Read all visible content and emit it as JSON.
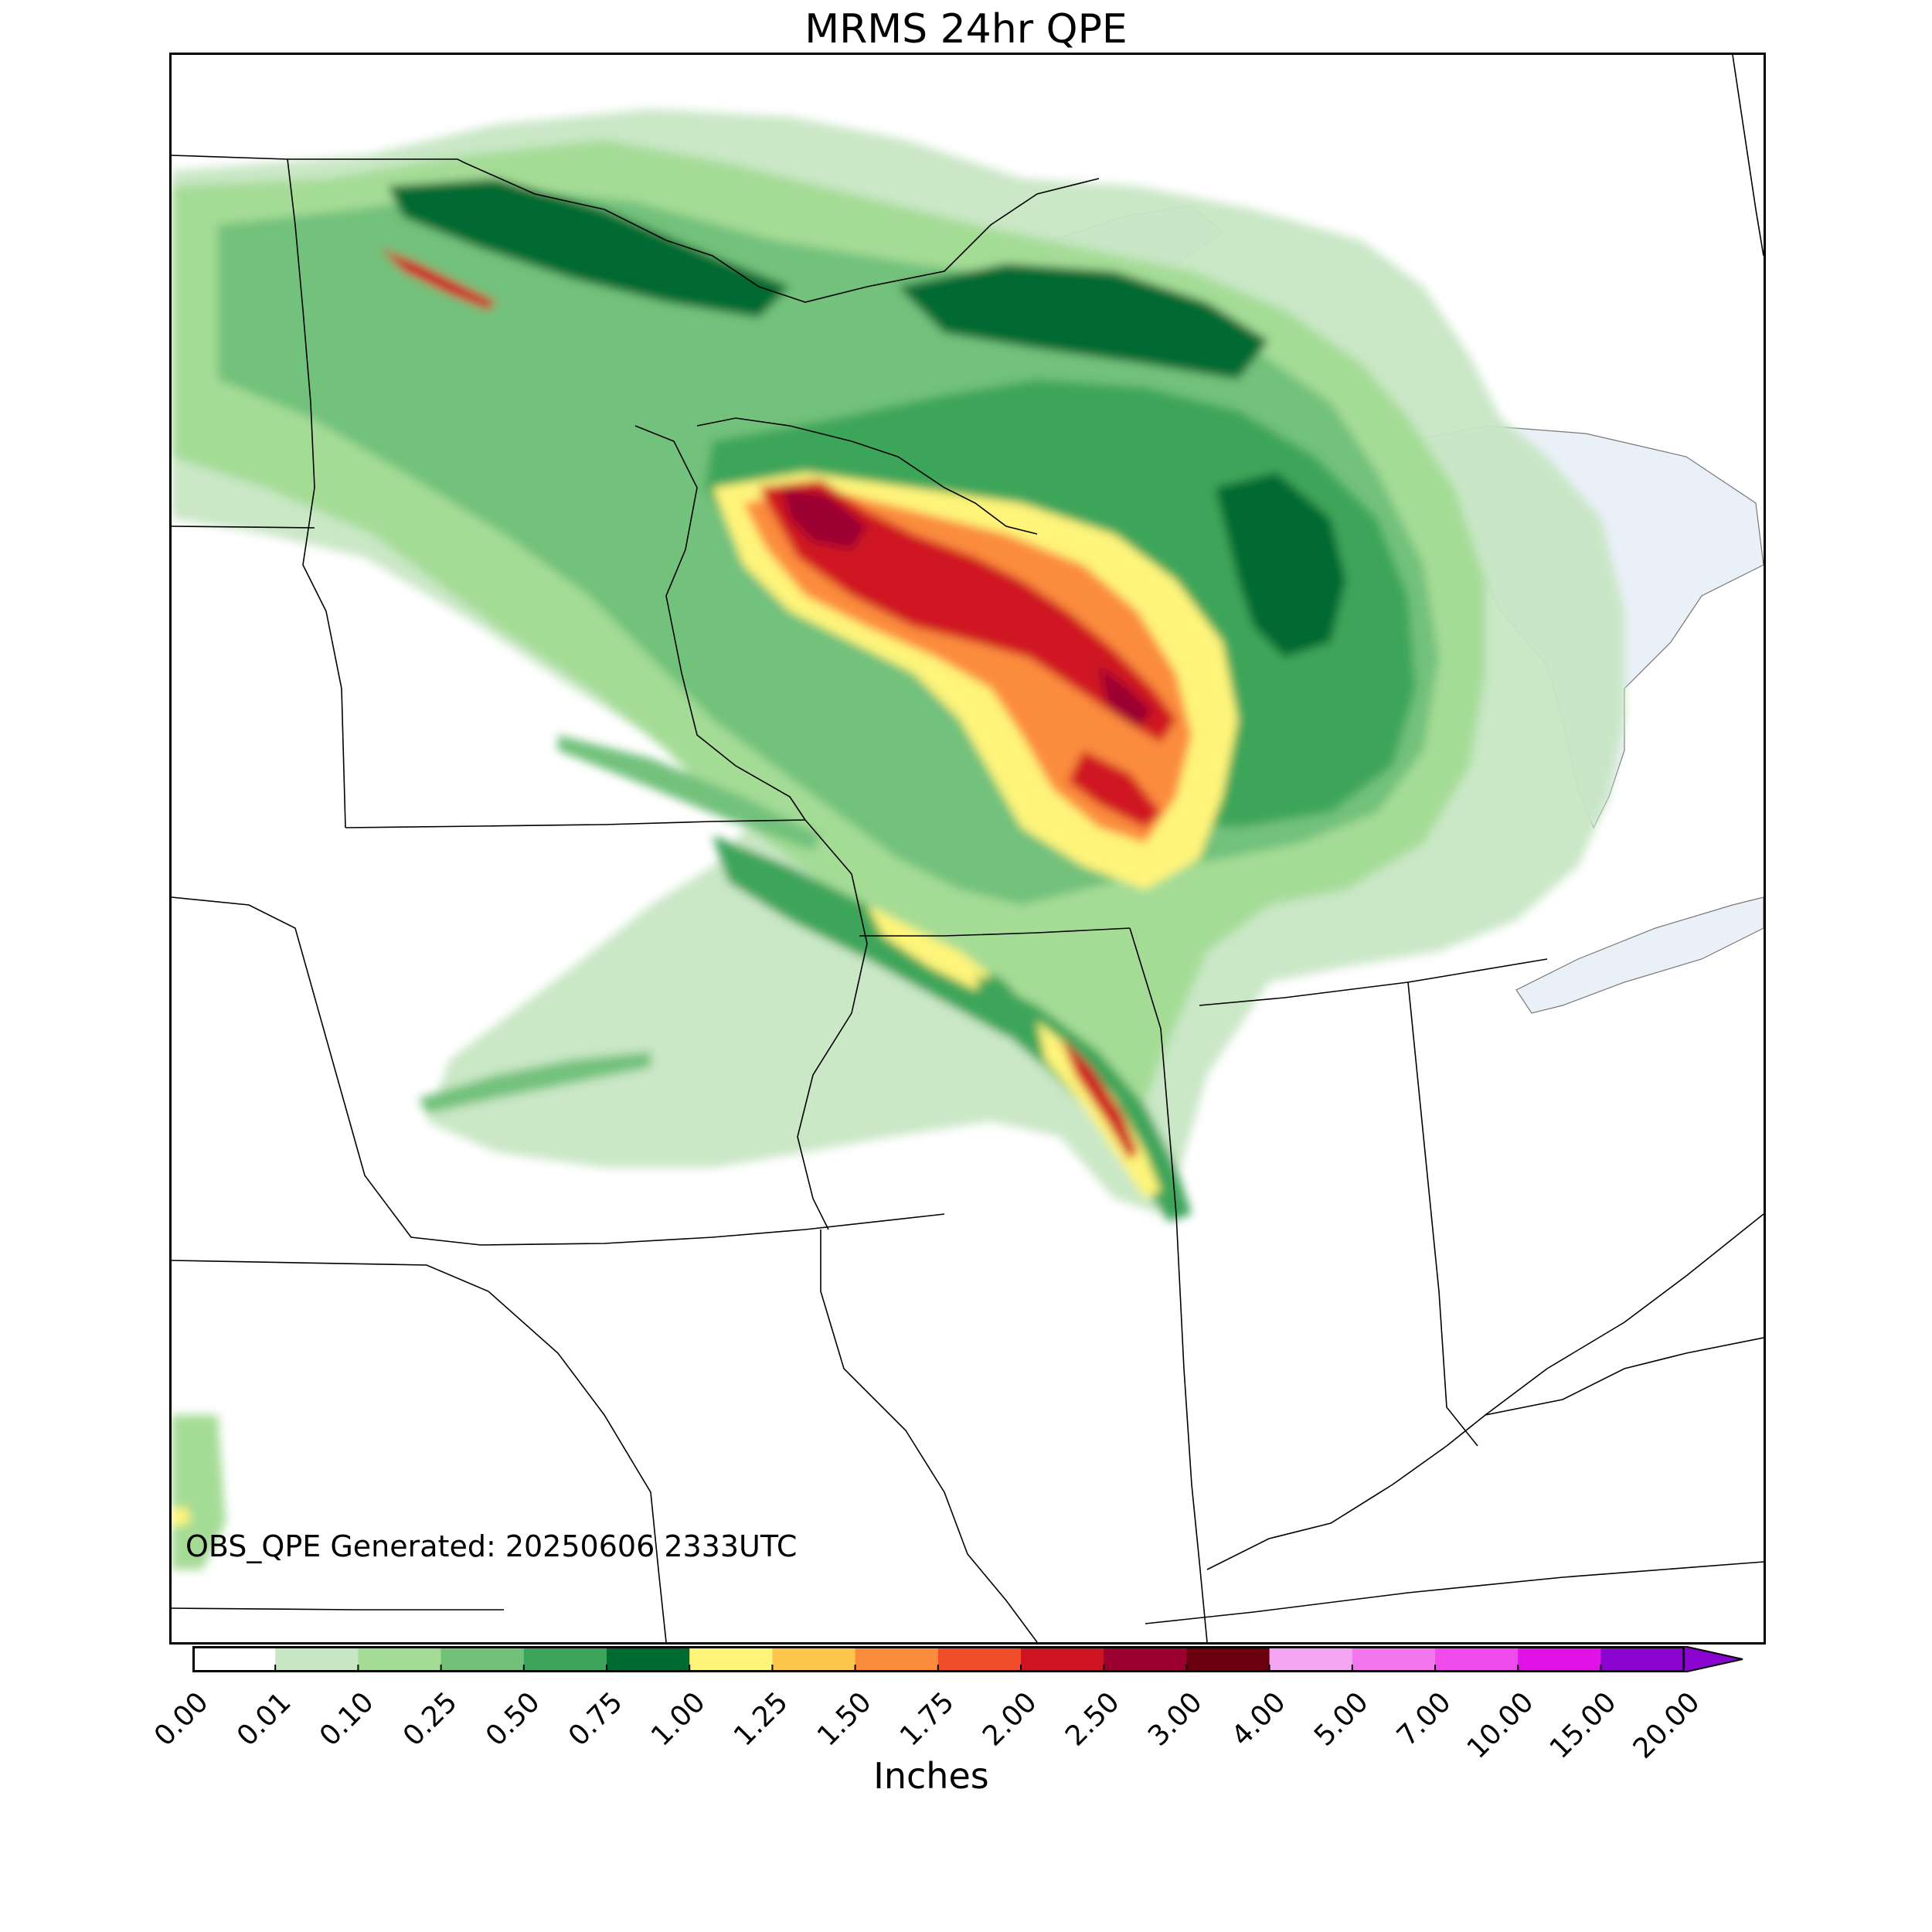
{
  "title": "MRMS 24hr QPE",
  "generated_label": "OBS_QPE Generated: 20250606 2333UTC",
  "colorbar": {
    "label": "Inches",
    "extend": "max",
    "ticks": [
      "0.00",
      "0.01",
      "0.10",
      "0.25",
      "0.50",
      "0.75",
      "1.00",
      "1.25",
      "1.50",
      "1.75",
      "2.00",
      "2.50",
      "3.00",
      "4.00",
      "5.00",
      "7.00",
      "10.00",
      "15.00",
      "20.00"
    ],
    "colors": [
      "#ffffff",
      "#c7e6c3",
      "#a4dc96",
      "#72c17b",
      "#3da55a",
      "#006b30",
      "#fef47a",
      "#fcc54c",
      "#fb8c3c",
      "#f04d2a",
      "#cf1421",
      "#9b0030",
      "#6a000d",
      "#f5a6f2",
      "#f277ef",
      "#ef4aeb",
      "#e012e6",
      "#8a05cf"
    ]
  },
  "map": {
    "projection": "Lambert Conformal",
    "region": "Upper Midwest / Great Lakes",
    "water_color": "#eaf0f8",
    "border_color": "#000000"
  }
}
